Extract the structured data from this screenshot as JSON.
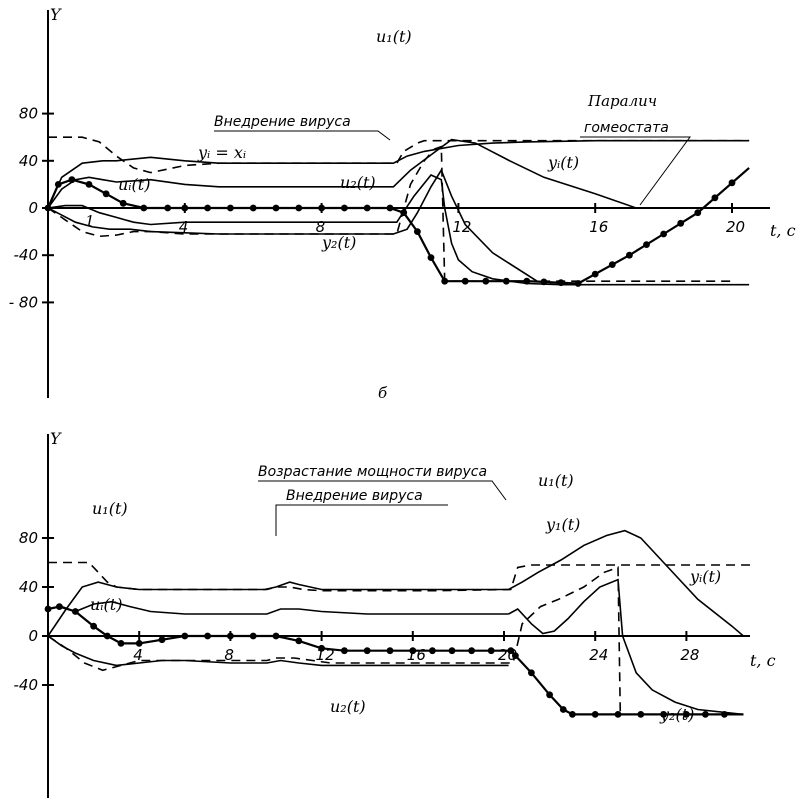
{
  "chart_data": [
    {
      "type": "line",
      "title": "",
      "xlabel": "t, c",
      "ylabel": "Y",
      "xlim": [
        0,
        21
      ],
      "ylim": [
        -80,
        80
      ],
      "x_ticks": [
        4,
        8,
        12,
        16,
        20
      ],
      "y_ticks": [
        80,
        40,
        0,
        -40,
        -80
      ],
      "x_tick_labels": [
        "4",
        "8",
        "12",
        "16",
        "20"
      ],
      "y_tick_labels": [
        "80",
        "40",
        "0",
        "-40",
        "- 80"
      ],
      "y_axis_label": "Y",
      "x_axis_label": "t, c",
      "extra_x_tick_label": {
        "x": 1,
        "text": "1"
      },
      "panel_label": "б",
      "annotations": [
        "Внедрение вируса",
        "Паралич",
        "гомеостата"
      ],
      "series": [
        {
          "name": "u₁(t)",
          "style": "dashed",
          "label": "u₁(t)",
          "x": [
            0,
            1,
            1.5,
            2,
            2.5,
            3,
            4,
            5,
            7,
            10.2,
            10.4,
            10.8,
            11,
            11.5,
            12,
            14,
            16,
            18,
            20.5
          ],
          "y": [
            60,
            60,
            56,
            44,
            34,
            30,
            36,
            38,
            38,
            38,
            48,
            55,
            57,
            57,
            57,
            57,
            57,
            57,
            57
          ]
        },
        {
          "name": "",
          "style": "solid",
          "x": [
            0,
            0.4,
            1,
            1.6,
            2,
            3,
            4,
            5,
            7,
            10.1,
            10.5,
            11,
            12,
            13,
            14,
            16,
            18,
            20.5
          ],
          "y": [
            0,
            26,
            38,
            40,
            40,
            43,
            40,
            38,
            38,
            38,
            44,
            48,
            53,
            55,
            56,
            57,
            57,
            57
          ]
        },
        {
          "name": "yᵢ = xᵢ",
          "style": "solid",
          "label": "yᵢ = xᵢ",
          "x": [
            0,
            0.4,
            0.8,
            1.2,
            1.6,
            2,
            3,
            4,
            5,
            7,
            10.1,
            10.6,
            11.2,
            11.8,
            12.5,
            13.5,
            14.5,
            16,
            17.2,
            18
          ],
          "y": [
            0,
            16,
            24,
            26,
            24,
            22,
            24,
            20,
            18,
            18,
            18,
            32,
            45,
            58,
            55,
            40,
            26,
            12,
            0,
            0
          ]
        },
        {
          "name": "uᵢ(t)",
          "style": "dotted",
          "label": "uᵢ(t)",
          "x": [
            0,
            0.3,
            0.7,
            1.2,
            1.7,
            2.2,
            2.8,
            3.5,
            4,
            6,
            8,
            10,
            10.4,
            10.8,
            11.2,
            11.6,
            14,
            15.5,
            17,
            18,
            19,
            20.5
          ],
          "y": [
            0,
            20,
            24,
            20,
            12,
            4,
            0,
            0,
            0,
            0,
            0,
            0,
            -4,
            -20,
            -42,
            -62,
            -62,
            -64,
            -40,
            -22,
            -4,
            34
          ]
        },
        {
          "name": "",
          "style": "solid",
          "label": "",
          "x": [
            0,
            0.5,
            1,
            1.5,
            2,
            2.5,
            3,
            4,
            6,
            8,
            10.2,
            10.7,
            11.2,
            11.5,
            11.6,
            11.8,
            12,
            12.4,
            13,
            14,
            15,
            20.5
          ],
          "y": [
            0,
            2,
            2,
            -4,
            -8,
            -12,
            -14,
            -12,
            -12,
            -12,
            -12,
            10,
            28,
            24,
            0,
            -30,
            -44,
            -54,
            -60,
            -64,
            -65,
            -65
          ]
        },
        {
          "name": "y₂(t)",
          "style": "solid",
          "label": "y₂(t)",
          "x": [
            0,
            0.4,
            0.8,
            1.3,
            1.8,
            2.4,
            3,
            4,
            5,
            7,
            10.1,
            10.5,
            10.8,
            11.2,
            11.5,
            11.8,
            12.2,
            13,
            14.3,
            15
          ],
          "y": [
            0,
            -6,
            -12,
            -16,
            -18,
            -18,
            -20,
            -21,
            -22,
            -22,
            -22,
            -18,
            -4,
            18,
            32,
            10,
            -14,
            -38,
            -62,
            -64
          ]
        },
        {
          "name": "u₂(t)",
          "style": "dashed",
          "label": "u₂(t)",
          "x": [
            0,
            0.5,
            1,
            1.5,
            2,
            2.5,
            3,
            4,
            6,
            8,
            10.2,
            10.6,
            11,
            11.3,
            11.5,
            11.6,
            12,
            14,
            16,
            20
          ],
          "y": [
            0,
            -10,
            -20,
            -24,
            -23,
            -20,
            -20,
            -22,
            -22,
            -22,
            -22,
            20,
            40,
            50,
            52,
            -62,
            -62,
            -62,
            -62,
            -62
          ]
        }
      ]
    },
    {
      "type": "line",
      "title": "",
      "xlabel": "t, c",
      "ylabel": "Y",
      "xlim": [
        0,
        31
      ],
      "ylim": [
        -60,
        90
      ],
      "x_ticks": [
        4,
        8,
        12,
        16,
        20,
        24,
        28
      ],
      "y_ticks": [
        80,
        40,
        0,
        -40
      ],
      "x_tick_labels": [
        "4",
        "8",
        "12",
        "16",
        "20",
        "24",
        "28"
      ],
      "y_tick_labels": [
        "80",
        "40",
        "0",
        "-40"
      ],
      "y_axis_label": "Y",
      "x_axis_label": "t, c",
      "annotations": [
        "Возрастание мощности вируса",
        "Внедрение вируса"
      ],
      "series": [
        {
          "name": "u₁(t)",
          "style": "dashed",
          "label": "u₁(t)",
          "x": [
            0,
            1.8,
            2.2,
            2.6,
            3,
            4,
            5,
            7,
            9.6,
            10,
            10.6,
            11.2,
            12,
            14,
            17,
            20.3,
            20.6,
            21.2,
            21.8,
            23,
            25,
            28,
            31
          ],
          "y": [
            60,
            60,
            52,
            44,
            40,
            38,
            38,
            38,
            38,
            40,
            40,
            38,
            37,
            37,
            37,
            38,
            56,
            58,
            58,
            58,
            58,
            58,
            58
          ]
        },
        {
          "name": "",
          "style": "solid",
          "x": [
            0,
            0.8,
            1.5,
            2.2,
            3,
            4,
            5,
            7,
            9.5,
            10,
            10.6,
            11,
            12,
            14,
            17,
            20.2,
            20.8,
            21.5,
            22.5,
            23.5,
            24.5,
            25.3,
            26,
            27,
            28.5,
            30,
            30.5
          ],
          "y": [
            0,
            22,
            40,
            44,
            40,
            38,
            38,
            38,
            38,
            40,
            44,
            42,
            38,
            38,
            38,
            38,
            44,
            52,
            62,
            74,
            82,
            86,
            80,
            60,
            30,
            8,
            0
          ]
        },
        {
          "name": "uᵢ(t)",
          "style": "solid",
          "label": "uᵢ(t)",
          "x": [
            0,
            0.6,
            1.2,
            2,
            2.8,
            3.6,
            4.5,
            6,
            8,
            9.6,
            10.2,
            11,
            12,
            14,
            17,
            20.2
          ],
          "y": [
            22,
            24,
            20,
            26,
            28,
            24,
            20,
            18,
            18,
            18,
            22,
            22,
            20,
            18,
            18,
            18
          ]
        },
        {
          "name": "y₁(t)",
          "style": "solid",
          "label": "y₁(t)",
          "x": [
            20.2,
            20.6,
            21.2,
            21.7,
            22.2,
            22.8,
            23.5,
            24.2,
            25,
            25.2
          ],
          "y": [
            18,
            22,
            10,
            2,
            4,
            14,
            28,
            40,
            46,
            0
          ]
        },
        {
          "name": "yᵢ(t)",
          "style": "dotted",
          "label": "yᵢ(t)",
          "x": [
            0,
            0.5,
            1.2,
            2,
            2.6,
            3.2,
            4,
            6,
            8,
            10,
            11,
            12,
            13,
            16,
            20.3,
            20.5,
            21.2,
            22,
            22.6,
            23,
            26,
            28,
            30.5
          ],
          "y": [
            22,
            24,
            20,
            8,
            0,
            -6,
            -6,
            0,
            0,
            0,
            -4,
            -10,
            -12,
            -12,
            -12,
            -16,
            -30,
            -48,
            -60,
            -64,
            -64,
            -64,
            -64
          ]
        },
        {
          "name": "u₂(t)",
          "style": "solid",
          "label": "u₂(t)",
          "x": [
            0,
            0.6,
            1.2,
            2,
            3,
            4,
            5,
            6,
            8,
            9.6,
            10.2,
            11,
            12,
            14,
            17,
            20.2
          ],
          "y": [
            0,
            -8,
            -14,
            -20,
            -24,
            -22,
            -20,
            -20,
            -22,
            -22,
            -20,
            -22,
            -24,
            -24,
            -24,
            -24
          ]
        },
        {
          "name": "",
          "style": "dashed",
          "x": [
            0,
            0.8,
            1.6,
            2.4,
            3.2,
            4,
            5,
            6,
            8,
            9.6,
            10,
            10.8,
            11.6,
            12.4,
            14,
            17,
            20.4,
            20.8,
            21.6,
            22.4,
            23.5,
            24.4,
            25,
            25.1,
            26,
            28,
            30.5
          ],
          "y": [
            0,
            -10,
            -22,
            -28,
            -24,
            -20,
            -20,
            -20,
            -20,
            -20,
            -18,
            -18,
            -20,
            -22,
            -22,
            -22,
            -22,
            10,
            24,
            30,
            40,
            52,
            56,
            -64,
            -64,
            -64,
            -64
          ]
        },
        {
          "name": "y₂(t)",
          "style": "solid",
          "label": "y₂(t)",
          "x": [
            25.2,
            25.8,
            26.5,
            27.5,
            28.5,
            30,
            30.5
          ],
          "y": [
            0,
            -30,
            -44,
            -54,
            -60,
            -63,
            -64
          ]
        }
      ]
    }
  ]
}
